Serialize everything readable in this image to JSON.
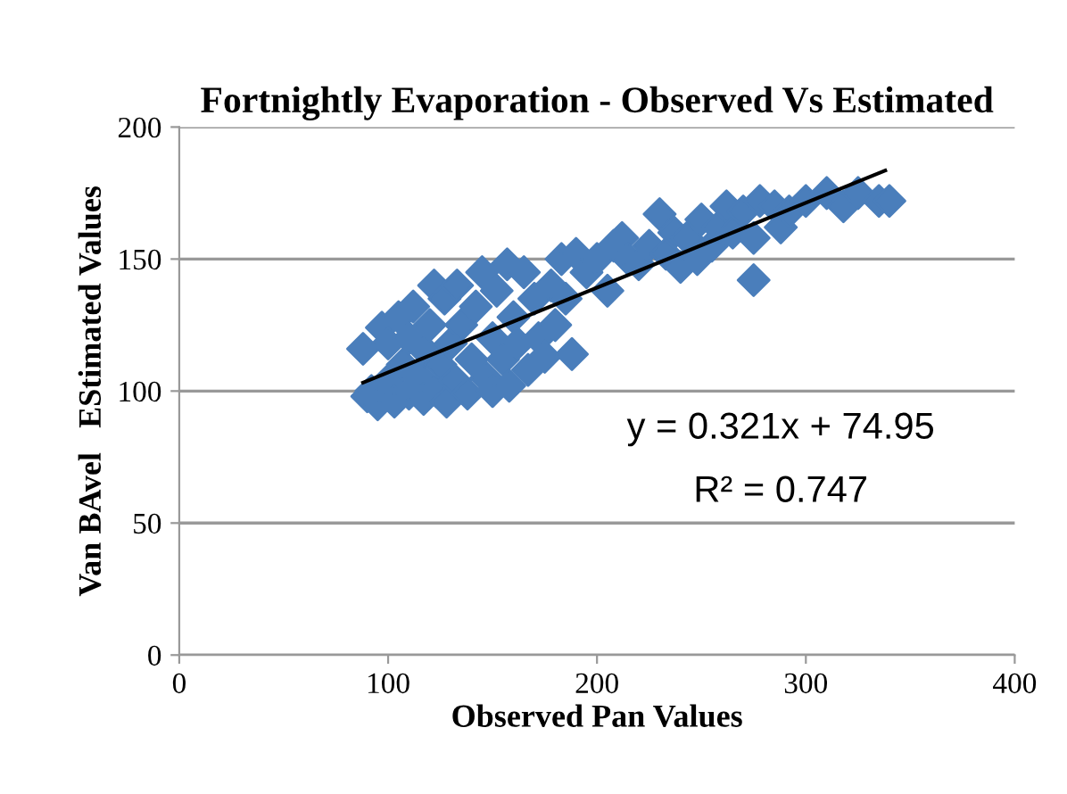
{
  "chart_data": {
    "type": "scatter",
    "title": "Fortnightly Evaporation - Observed Vs Estimated",
    "xlabel": "Observed Pan Values",
    "ylabel": "Van BAvel   EStimated Values",
    "xlim": [
      0,
      400
    ],
    "xticks": [
      0,
      100,
      200,
      300,
      400
    ],
    "ylim": [
      0,
      200
    ],
    "yticks": [
      0,
      50,
      100,
      150,
      200
    ],
    "grid": "y",
    "series": [
      {
        "marker": "diamond",
        "color": "#4a7ebb",
        "x": [
          88,
          90,
          92,
          95,
          97,
          100,
          100,
          103,
          105,
          107,
          110,
          110,
          112,
          115,
          117,
          118,
          120,
          122,
          123,
          125,
          127,
          128,
          130,
          132,
          133,
          135,
          138,
          140,
          142,
          145,
          147,
          150,
          150,
          152,
          155,
          157,
          158,
          160,
          162,
          165,
          167,
          170,
          172,
          175,
          178,
          180,
          183,
          185,
          188,
          190,
          195,
          200,
          205,
          208,
          212,
          215,
          220,
          225,
          230,
          233,
          237,
          240,
          243,
          248,
          250,
          255,
          258,
          262,
          265,
          270,
          275,
          278,
          275,
          285,
          288,
          292,
          300,
          310,
          318,
          325,
          335,
          340
        ],
        "values": [
          116,
          98,
          100,
          95,
          124,
          104,
          118,
          96,
          128,
          110,
          99,
          120,
          132,
          105,
          97,
          115,
          125,
          140,
          100,
          110,
          135,
          96,
          118,
          104,
          140,
          125,
          99,
          112,
          132,
          145,
          105,
          120,
          100,
          138,
          112,
          148,
          102,
          128,
          118,
          145,
          108,
          135,
          120,
          113,
          140,
          125,
          150,
          135,
          114,
          152,
          145,
          150,
          138,
          155,
          158,
          150,
          148,
          155,
          167,
          152,
          160,
          147,
          158,
          150,
          165,
          155,
          162,
          170,
          160,
          168,
          158,
          172,
          142,
          170,
          162,
          168,
          172,
          175,
          170,
          175,
          172,
          172
        ]
      },
      {
        "type": "line",
        "color": "#000000",
        "x": [
          88,
          338
        ],
        "values": [
          103.2,
          183.5
        ]
      }
    ],
    "annotations": [
      "y = 0.321x + 74.95",
      "R² = 0.747"
    ]
  }
}
